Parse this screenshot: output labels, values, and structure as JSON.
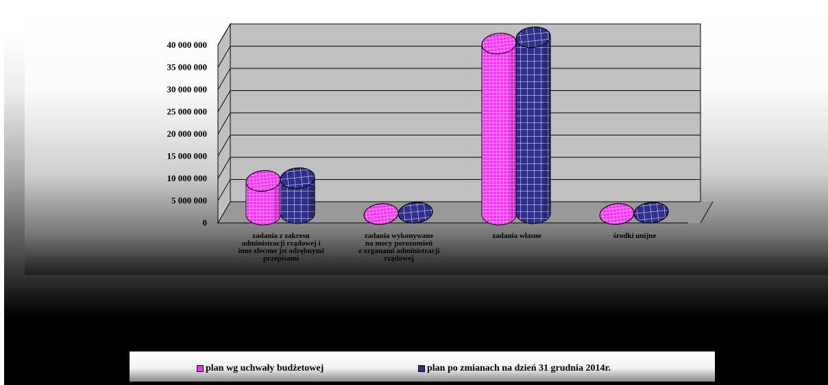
{
  "colors": {
    "series1": "#ff33ff",
    "series1_grid": "#ffe0ff",
    "series2": "#2e2e8c",
    "series2_grid": "#ffffff",
    "wall": "#c0c0c0",
    "floor": "#999999"
  },
  "chart_data": {
    "type": "bar",
    "bar_shape": "cylinder-3d",
    "categories": [
      [
        "zadania z zakresu",
        "administracji rządowej i",
        "inne zlecone jst odrębnymi",
        "przepisami"
      ],
      [
        "zadania wykonywane",
        "na mocy porozumień",
        "z organami administracji",
        "rządowej"
      ],
      [
        "zadania własne"
      ],
      [
        "środki unijne"
      ]
    ],
    "series": [
      {
        "name": "plan wg uchwały budżetowej",
        "values": [
          7600000,
          150000,
          38500000,
          150000
        ]
      },
      {
        "name": "plan po zmianach na dzień 31 grudnia 2014r.",
        "values": [
          7900000,
          150000,
          39600000,
          150000
        ]
      }
    ],
    "y_ticks": [
      "0",
      "5 000 000",
      "10 000 000",
      "15 000 000",
      "20 000 000",
      "25 000 000",
      "30 000 000",
      "35 000 000",
      "40 000 000"
    ],
    "ylim": [
      0,
      40000000
    ],
    "grid": true,
    "legend_position": "bottom"
  }
}
